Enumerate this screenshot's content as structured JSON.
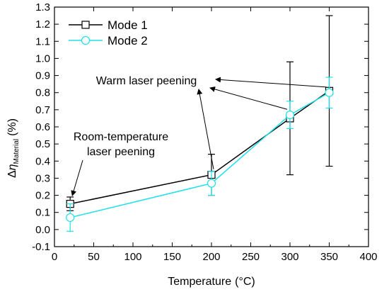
{
  "chart_data": {
    "type": "line",
    "xlabel": "Temperature",
    "xlabel_unit": "(°C)",
    "ylabel_prefix": "Δ",
    "ylabel_symbol": "η",
    "ylabel_subscript": "Material",
    "ylabel_unit": "(%)",
    "xlim": [
      0,
      400
    ],
    "ylim": [
      -0.1,
      1.3
    ],
    "xticks": [
      0,
      50,
      100,
      150,
      200,
      250,
      300,
      350,
      400
    ],
    "yticks": [
      -0.1,
      0.0,
      0.1,
      0.2,
      0.3,
      0.4,
      0.5,
      0.6,
      0.7,
      0.8,
      0.9,
      1.0,
      1.1,
      1.2,
      1.3
    ],
    "xtick_labels": [
      "0",
      "50",
      "100",
      "150",
      "200",
      "250",
      "300",
      "350",
      "400"
    ],
    "ytick_labels": [
      "-0.1",
      "0.0",
      "0.1",
      "0.2",
      "0.3",
      "0.4",
      "0.5",
      "0.6",
      "0.7",
      "0.8",
      "0.9",
      "1.0",
      "1.1",
      "1.2",
      "1.3"
    ],
    "grid": false,
    "legend_position": "top-left",
    "series": [
      {
        "name": "Mode 1",
        "color": "#000000",
        "marker": "square",
        "x": [
          20,
          200,
          300,
          350
        ],
        "y": [
          0.15,
          0.32,
          0.65,
          0.81
        ],
        "err": [
          0.04,
          0.12,
          0.33,
          0.44
        ]
      },
      {
        "name": "Mode 2",
        "color": "#1ee0ea",
        "marker": "circle",
        "x": [
          20,
          200,
          300,
          350
        ],
        "y": [
          0.07,
          0.27,
          0.67,
          0.8
        ],
        "err": [
          0.08,
          0.07,
          0.08,
          0.09
        ]
      }
    ],
    "annotations": [
      {
        "id": "room",
        "lines": [
          "Room-temperature",
          "laser peening"
        ],
        "arrows_to": [
          [
            20,
            0.19
          ]
        ]
      },
      {
        "id": "warm",
        "lines": [
          "Warm laser peening"
        ],
        "arrows_to": [
          [
            200,
            0.34
          ],
          [
            300,
            0.69
          ],
          [
            350,
            0.82
          ]
        ]
      }
    ]
  }
}
